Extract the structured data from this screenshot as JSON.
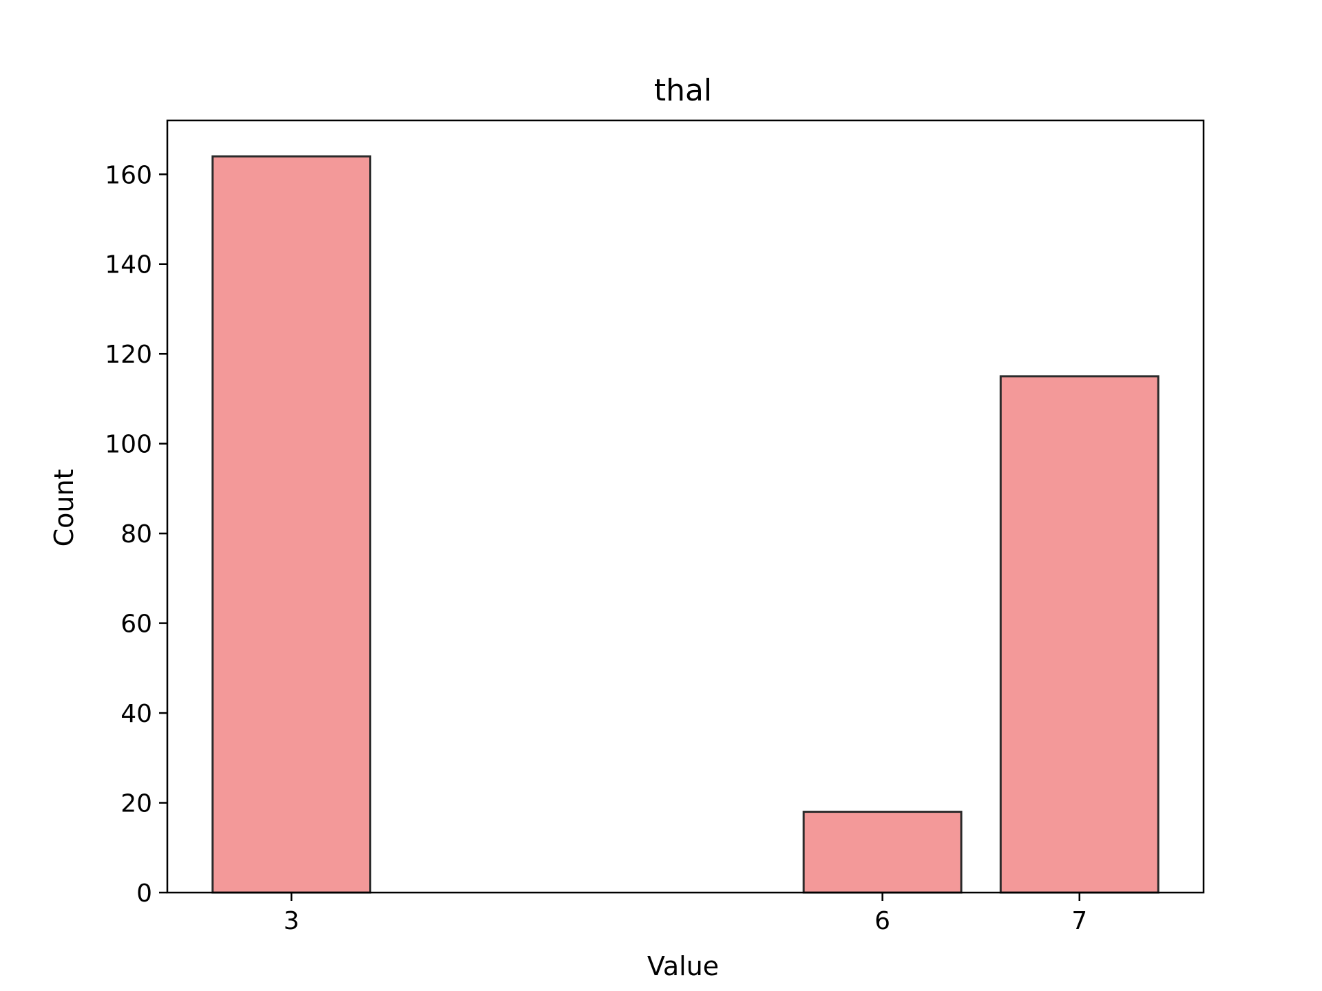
{
  "chart_data": {
    "type": "bar",
    "title": "thal",
    "xlabel": "Value",
    "ylabel": "Count",
    "x": [
      3,
      6,
      7
    ],
    "values": [
      164,
      18,
      115
    ],
    "bar_width": 0.8,
    "xlim": [
      2.37,
      7.63
    ],
    "ylim": [
      0,
      172
    ],
    "xticks": [
      3,
      6,
      7
    ],
    "xtick_labels": [
      "3",
      "6",
      "7"
    ],
    "yticks": [
      0,
      20,
      40,
      60,
      80,
      100,
      120,
      140,
      160
    ],
    "ytick_labels": [
      "0",
      "20",
      "40",
      "60",
      "80",
      "100",
      "120",
      "140",
      "160"
    ],
    "grid": false,
    "legend": "none",
    "colors": {
      "bar_fill": "#f39999",
      "bar_edge": "#2b2b2b",
      "axes": "#000000"
    }
  }
}
